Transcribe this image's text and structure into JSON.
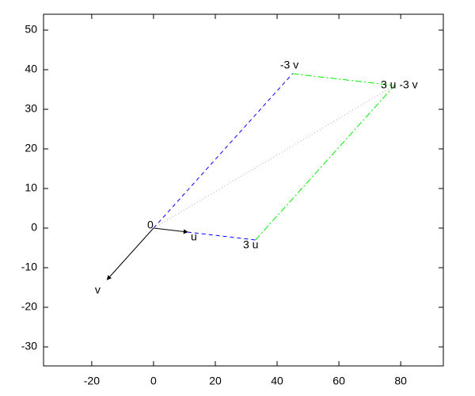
{
  "chart_data": {
    "type": "vector",
    "xlim": [
      -35.6,
      93.8
    ],
    "ylim": [
      -34.8,
      54
    ],
    "xticks": [
      -20,
      0,
      20,
      40,
      60,
      80
    ],
    "yticks": [
      -30,
      -20,
      -10,
      0,
      10,
      20,
      30,
      40,
      50
    ],
    "series": [
      {
        "x": [
          0,
          11
        ],
        "y": [
          0,
          -1
        ],
        "color": "#000000",
        "style": "solid",
        "arrow": true
      },
      {
        "x": [
          0,
          -15
        ],
        "y": [
          0,
          -13
        ],
        "color": "#000000",
        "style": "solid",
        "arrow": true
      },
      {
        "x": [
          11,
          33
        ],
        "y": [
          -1,
          -3
        ],
        "color": "#0000ff",
        "style": "dashed",
        "arrow": false
      },
      {
        "x": [
          0,
          45
        ],
        "y": [
          0,
          39
        ],
        "color": "#0000ff",
        "style": "dashed",
        "arrow": false
      },
      {
        "x": [
          33,
          78
        ],
        "y": [
          -3,
          36
        ],
        "color": "#00ee00",
        "style": "dashdot",
        "arrow": false
      },
      {
        "x": [
          45,
          78
        ],
        "y": [
          39,
          36
        ],
        "color": "#00ee00",
        "style": "dashdot",
        "arrow": false
      },
      {
        "x": [
          0,
          78
        ],
        "y": [
          0,
          36
        ],
        "color": "#c0a0a0",
        "style": "dotted",
        "arrow": false
      }
    ],
    "annotations": [
      {
        "text": "0",
        "x": 0,
        "y": 0
      },
      {
        "text": "u",
        "x": 11,
        "y": -1
      },
      {
        "text": "v",
        "x": -15,
        "y": -13
      },
      {
        "text": "3 u",
        "x": 33,
        "y": -3
      },
      {
        "text": "-3 v",
        "x": 45,
        "y": 39
      },
      {
        "text": "3 u -3 v",
        "x": 78,
        "y": 36
      }
    ]
  }
}
